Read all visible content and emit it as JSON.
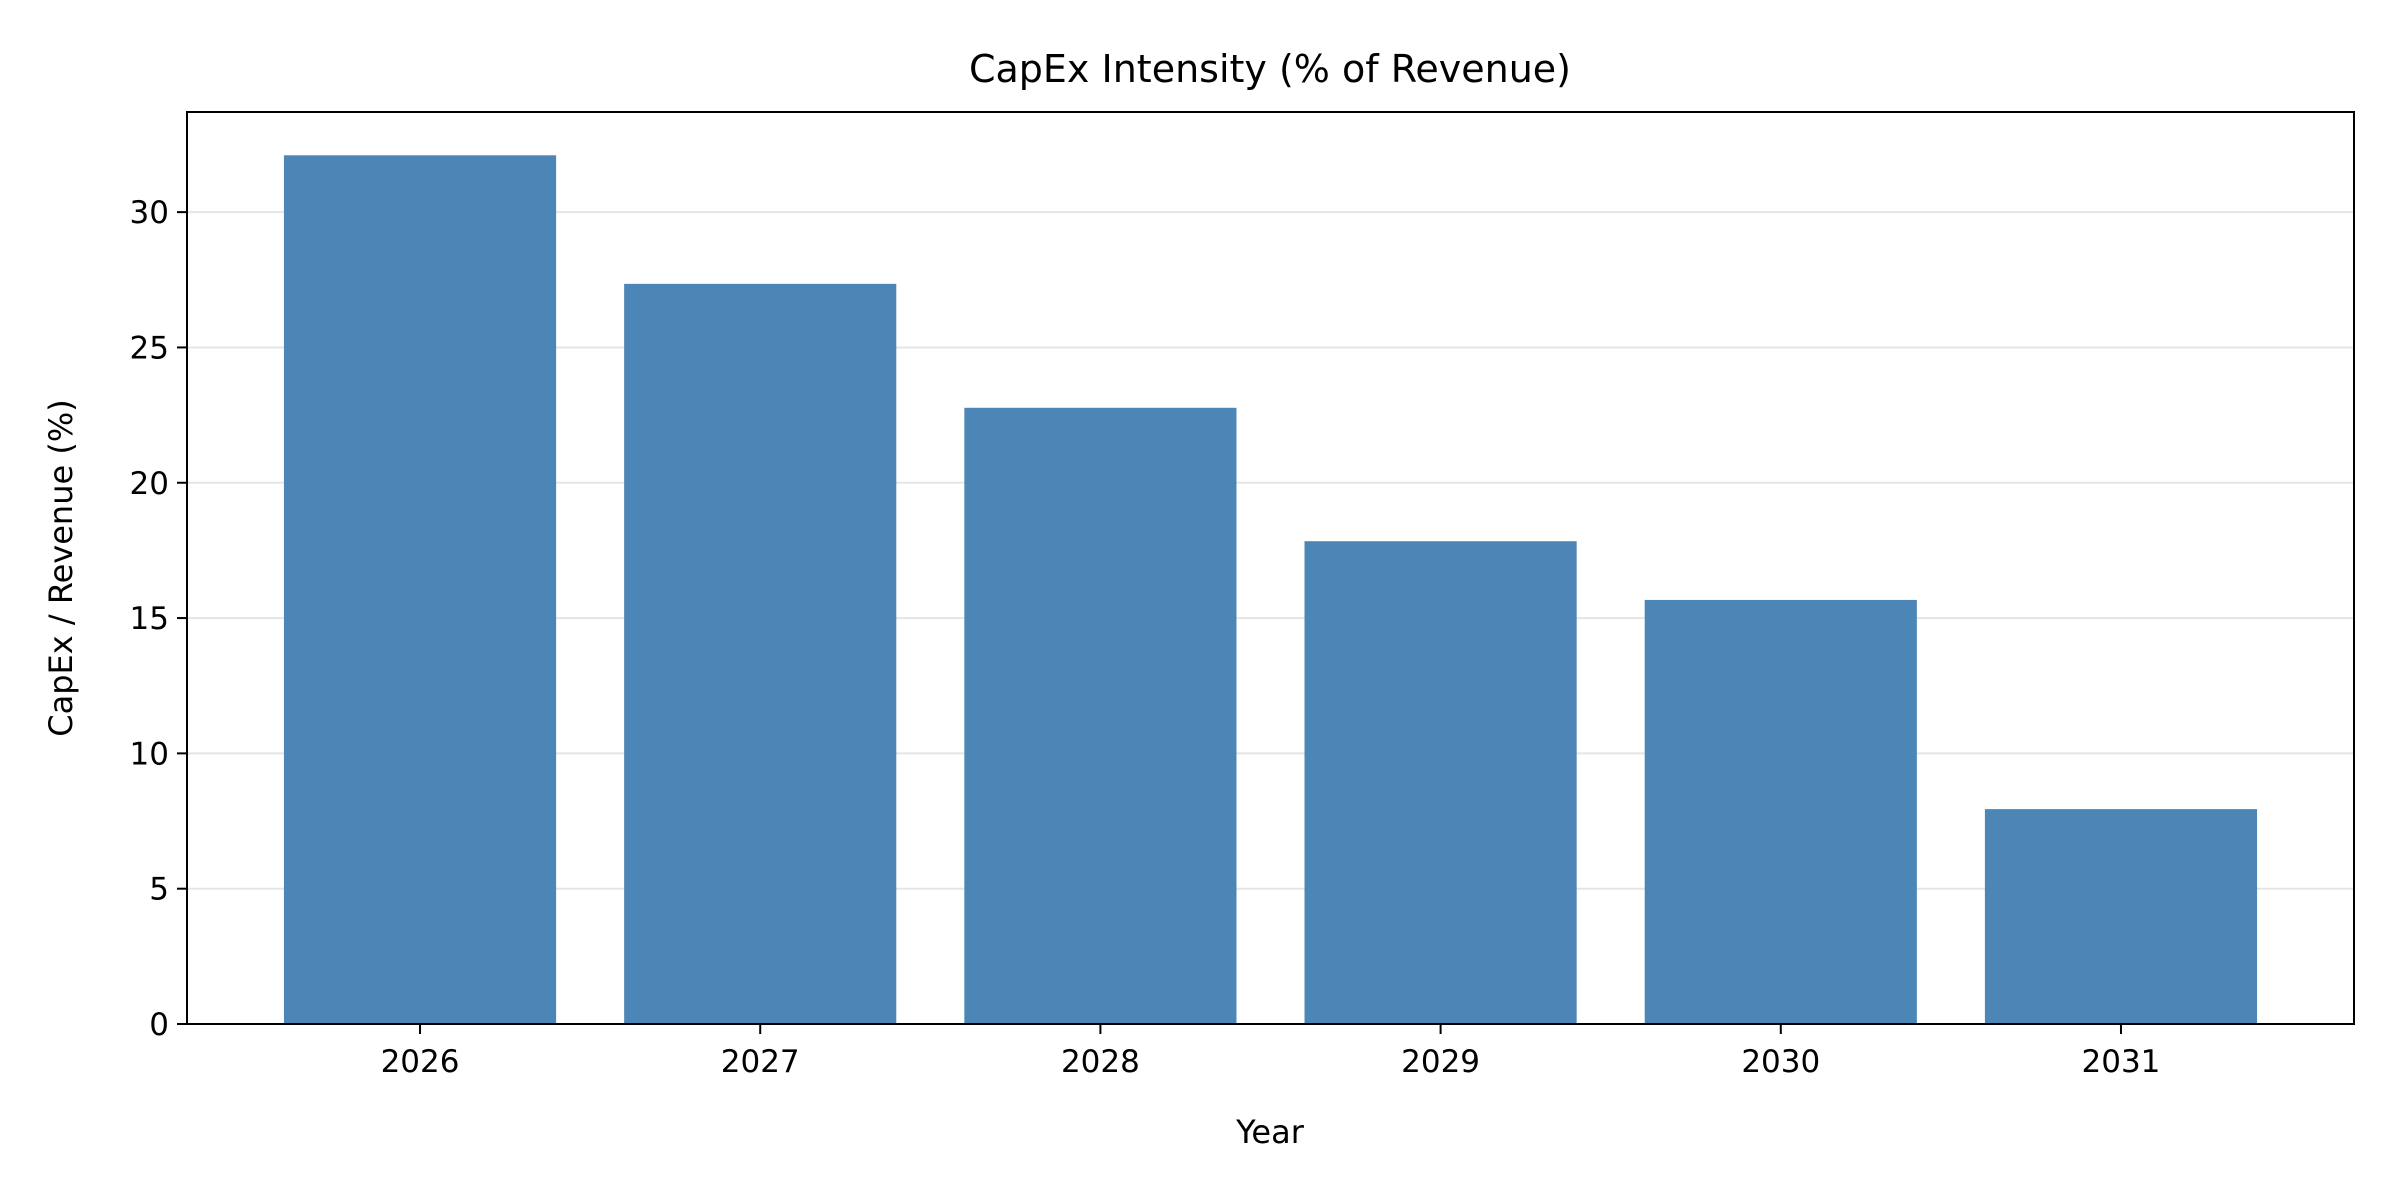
{
  "chart_data": {
    "type": "bar",
    "title": "CapEx Intensity (% of Revenue)",
    "xlabel": "Year",
    "ylabel": "CapEx / Revenue (%)",
    "categories": [
      "2026",
      "2027",
      "2028",
      "2029",
      "2030",
      "2031"
    ],
    "values": [
      32.1,
      27.35,
      22.77,
      17.84,
      15.67,
      7.94
    ],
    "ylim": [
      0,
      33.7
    ],
    "yticks": [
      0,
      5,
      10,
      15,
      20,
      25,
      30
    ],
    "ytick_labels": [
      "0",
      "5",
      "10",
      "15",
      "20",
      "25",
      "30"
    ],
    "grid": "horizontal",
    "bar_color": "#4682b4",
    "legend": "none"
  }
}
